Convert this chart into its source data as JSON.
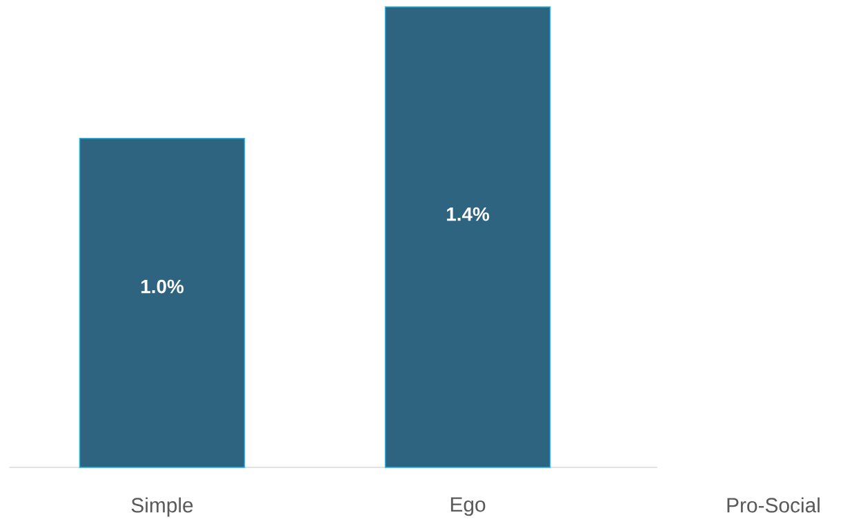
{
  "chart_data": {
    "type": "bar",
    "categories": [
      "Simple",
      "Ego",
      "Pro-Social"
    ],
    "values": [
      1.0,
      1.4,
      null
    ],
    "value_labels": [
      "1.0%",
      "1.4%",
      null
    ],
    "color": "#2e6480"
  }
}
